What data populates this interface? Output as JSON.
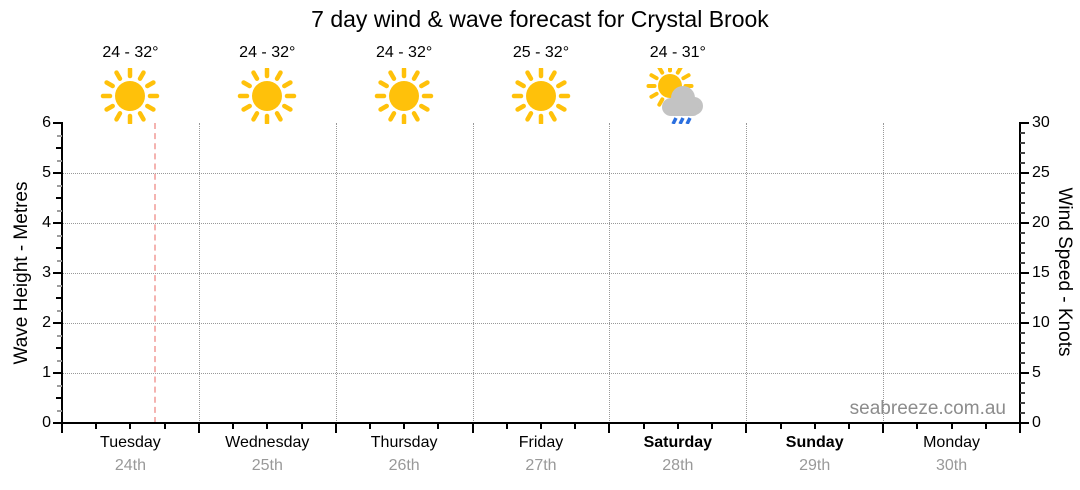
{
  "title": "7 day wind & wave forecast for Crystal Brook",
  "watermark": "seabreeze.com.au",
  "colors": {
    "text": "#000000",
    "muted_text": "#999999",
    "watermark": "#8c8c8c",
    "grid": "#999999",
    "axis": "#000000",
    "minor_tick": "#444444",
    "quarter_tick": "#9e9e9e",
    "now_line": "#f4b3b0",
    "sun": "#ffc10a",
    "cloud": "#c3c3c3",
    "rain": "#2b6fdf"
  },
  "chart_data": {
    "type": "forecast-timeline",
    "title": "7 day wind & wave forecast for Crystal Brook",
    "grid": true,
    "series": [],
    "days": [
      {
        "label": "Tuesday",
        "date": "24th",
        "temp": "24 - 32°",
        "icon": "sunny",
        "bold": false
      },
      {
        "label": "Wednesday",
        "date": "25th",
        "temp": "24 - 32°",
        "icon": "sunny",
        "bold": false
      },
      {
        "label": "Thursday",
        "date": "26th",
        "temp": "24 - 32°",
        "icon": "sunny",
        "bold": false
      },
      {
        "label": "Friday",
        "date": "27th",
        "temp": "25 - 32°",
        "icon": "sunny",
        "bold": false
      },
      {
        "label": "Saturday",
        "date": "28th",
        "temp": "24 - 31°",
        "icon": "sun-cloud-rain",
        "bold": true
      },
      {
        "label": "Sunday",
        "date": "29th",
        "temp": null,
        "icon": null,
        "bold": true
      },
      {
        "label": "Monday",
        "date": "30th",
        "temp": null,
        "icon": null,
        "bold": false
      }
    ],
    "left_axis": {
      "label": "Wave Height - Metres",
      "min": 0,
      "max": 6,
      "major_step": 1,
      "minor_step": 0.25,
      "tick_labels": [
        0,
        1,
        2,
        3,
        4,
        5,
        6
      ]
    },
    "right_axis": {
      "label": "Wind Speed - Knots",
      "min": 0,
      "max": 30,
      "major_step": 5,
      "minor_step": 1,
      "tick_labels": [
        0,
        5,
        10,
        15,
        20,
        25,
        30
      ]
    },
    "x_axis": {
      "tick_subdivisions_per_day": 4
    },
    "now_marker": {
      "day_index": 0,
      "fraction_of_day": 0.67
    }
  }
}
